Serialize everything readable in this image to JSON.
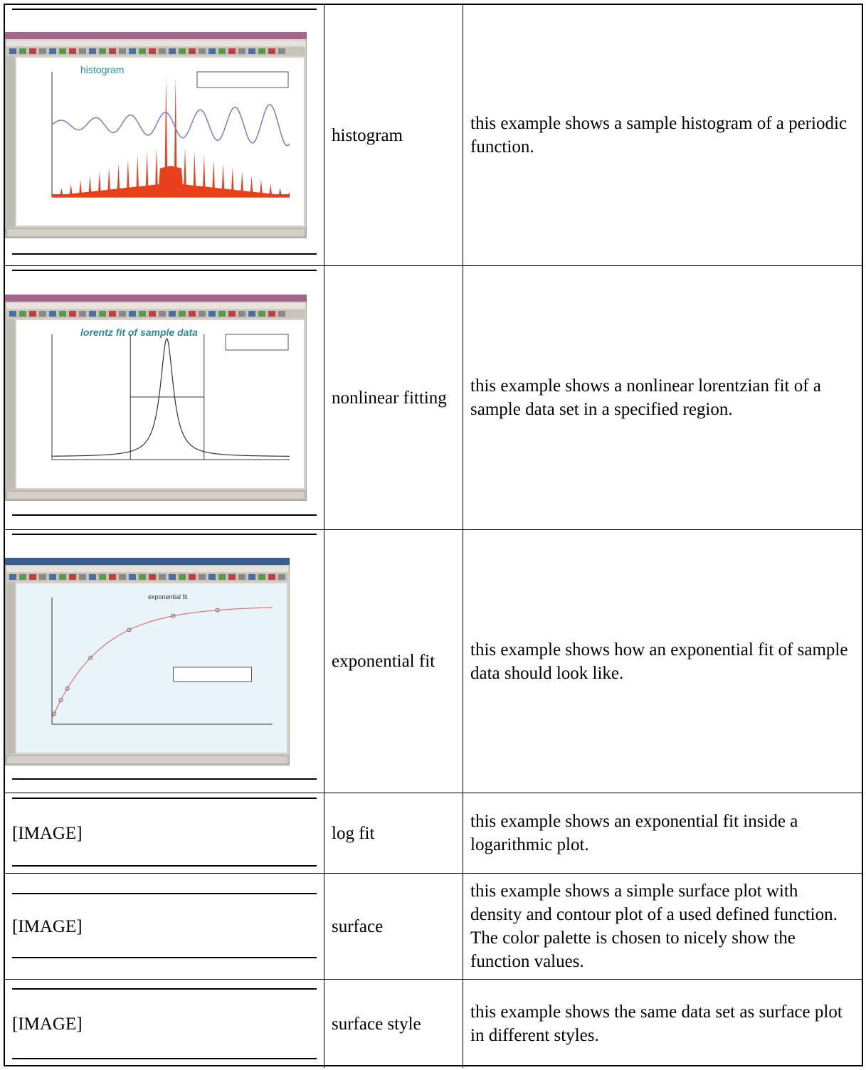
{
  "table": {
    "rows": [
      {
        "image_title": "histogram",
        "name": "histogram",
        "description": "this example shows a sample histogram of a periodic function."
      },
      {
        "image_title": "lorentz fit of sample data",
        "name": "nonlinear fitting",
        "description": "this example shows a nonlinear lorentzian fit of a sample data set in a specified region."
      },
      {
        "image_title": "exponential fit",
        "name": "exponential fit",
        "description": "this example shows how an exponential fit of sample data should look like."
      },
      {
        "image": "[IMAGE]",
        "name": "log fit",
        "description": "this example shows an exponential fit inside a logarithmic plot."
      },
      {
        "image": "[IMAGE]",
        "name": "surface",
        "description": "this example shows a simple surface plot with density and contour plot of a used defined function. The color palette is chosen to nicely show the function values."
      },
      {
        "image": "[IMAGE]",
        "name": "surface style",
        "description": "this example shows the same data set as surface plot in different styles."
      }
    ]
  }
}
